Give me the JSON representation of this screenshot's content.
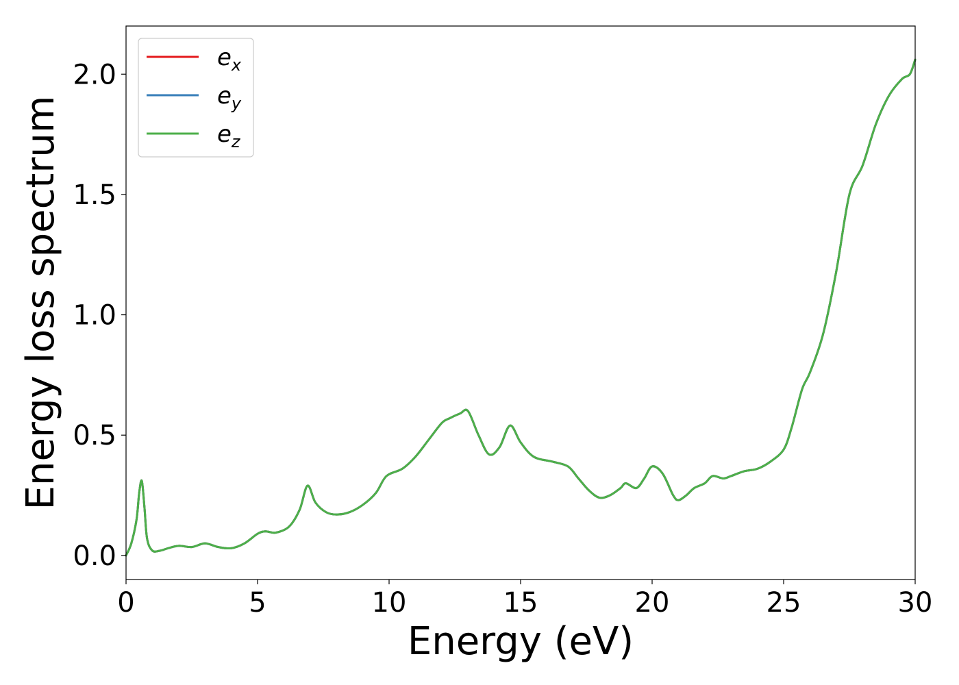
{
  "chart_data": {
    "type": "line",
    "title": "",
    "xlabel": "Energy (eV)",
    "ylabel": "Energy loss spectrum",
    "xlim": [
      0,
      30
    ],
    "ylim": [
      -0.1,
      2.2
    ],
    "xticks": [
      0,
      5,
      10,
      15,
      20,
      25,
      30
    ],
    "xtick_labels": [
      "0",
      "5",
      "10",
      "15",
      "20",
      "25",
      "30"
    ],
    "yticks": [
      0.0,
      0.5,
      1.0,
      1.5,
      2.0
    ],
    "ytick_labels": [
      "0.0",
      "0.5",
      "1.0",
      "1.5",
      "2.0"
    ],
    "grid": false,
    "legend_position": "top-left",
    "x": [
      0,
      0.2,
      0.4,
      0.5,
      0.6,
      0.7,
      0.8,
      1.0,
      1.3,
      1.6,
      2.0,
      2.5,
      3.0,
      3.5,
      4.0,
      4.5,
      5.0,
      5.3,
      5.7,
      6.2,
      6.6,
      6.9,
      7.2,
      7.6,
      8.0,
      8.5,
      9.0,
      9.5,
      9.9,
      10.5,
      11.0,
      11.5,
      12.0,
      12.3,
      12.7,
      13.0,
      13.4,
      13.8,
      14.2,
      14.6,
      15.0,
      15.5,
      16.2,
      16.8,
      17.2,
      17.6,
      18.0,
      18.4,
      18.8,
      19.0,
      19.4,
      19.7,
      20.0,
      20.4,
      20.8,
      21.0,
      21.3,
      21.6,
      22.0,
      22.3,
      22.7,
      23.0,
      23.5,
      24.0,
      24.5,
      25.0,
      25.3,
      25.7,
      26.0,
      26.5,
      27.0,
      27.5,
      28.0,
      28.5,
      29.0,
      29.5,
      29.8,
      30.0
    ],
    "series": [
      {
        "name": "e_x",
        "color": "#e41a1c",
        "y": [
          0.0,
          0.05,
          0.15,
          0.26,
          0.31,
          0.2,
          0.07,
          0.02,
          0.02,
          0.03,
          0.04,
          0.035,
          0.05,
          0.035,
          0.03,
          0.05,
          0.09,
          0.1,
          0.095,
          0.12,
          0.19,
          0.29,
          0.22,
          0.18,
          0.17,
          0.18,
          0.21,
          0.26,
          0.33,
          0.36,
          0.41,
          0.48,
          0.55,
          0.57,
          0.59,
          0.6,
          0.5,
          0.42,
          0.45,
          0.54,
          0.47,
          0.41,
          0.39,
          0.37,
          0.32,
          0.27,
          0.24,
          0.25,
          0.28,
          0.3,
          0.28,
          0.32,
          0.37,
          0.34,
          0.25,
          0.23,
          0.25,
          0.28,
          0.3,
          0.33,
          0.32,
          0.33,
          0.35,
          0.36,
          0.39,
          0.44,
          0.53,
          0.69,
          0.76,
          0.92,
          1.18,
          1.5,
          1.62,
          1.79,
          1.91,
          1.98,
          2.0,
          2.06
        ]
      },
      {
        "name": "e_y",
        "color": "#377eb8",
        "y": [
          0.0,
          0.05,
          0.15,
          0.26,
          0.31,
          0.2,
          0.07,
          0.02,
          0.02,
          0.03,
          0.04,
          0.035,
          0.05,
          0.035,
          0.03,
          0.05,
          0.09,
          0.1,
          0.095,
          0.12,
          0.19,
          0.29,
          0.22,
          0.18,
          0.17,
          0.18,
          0.21,
          0.26,
          0.33,
          0.36,
          0.41,
          0.48,
          0.55,
          0.57,
          0.59,
          0.6,
          0.5,
          0.42,
          0.45,
          0.54,
          0.47,
          0.41,
          0.39,
          0.37,
          0.32,
          0.27,
          0.24,
          0.25,
          0.28,
          0.3,
          0.28,
          0.32,
          0.37,
          0.34,
          0.25,
          0.23,
          0.25,
          0.28,
          0.3,
          0.33,
          0.32,
          0.33,
          0.35,
          0.36,
          0.39,
          0.44,
          0.53,
          0.69,
          0.76,
          0.92,
          1.18,
          1.5,
          1.62,
          1.79,
          1.91,
          1.98,
          2.0,
          2.06
        ]
      },
      {
        "name": "e_z",
        "color": "#4daf4a",
        "y": [
          0.0,
          0.05,
          0.15,
          0.26,
          0.31,
          0.2,
          0.07,
          0.02,
          0.02,
          0.03,
          0.04,
          0.035,
          0.05,
          0.035,
          0.03,
          0.05,
          0.09,
          0.1,
          0.095,
          0.12,
          0.19,
          0.29,
          0.22,
          0.18,
          0.17,
          0.18,
          0.21,
          0.26,
          0.33,
          0.36,
          0.41,
          0.48,
          0.55,
          0.57,
          0.59,
          0.6,
          0.5,
          0.42,
          0.45,
          0.54,
          0.47,
          0.41,
          0.39,
          0.37,
          0.32,
          0.27,
          0.24,
          0.25,
          0.28,
          0.3,
          0.28,
          0.32,
          0.37,
          0.34,
          0.25,
          0.23,
          0.25,
          0.28,
          0.3,
          0.33,
          0.32,
          0.33,
          0.35,
          0.36,
          0.39,
          0.44,
          0.53,
          0.69,
          0.76,
          0.92,
          1.18,
          1.5,
          1.62,
          1.79,
          1.91,
          1.98,
          2.0,
          2.06
        ]
      }
    ],
    "legend": [
      {
        "base": "e",
        "sub": "x",
        "color": "#e41a1c"
      },
      {
        "base": "e",
        "sub": "y",
        "color": "#377eb8"
      },
      {
        "base": "e",
        "sub": "z",
        "color": "#4daf4a"
      }
    ]
  }
}
